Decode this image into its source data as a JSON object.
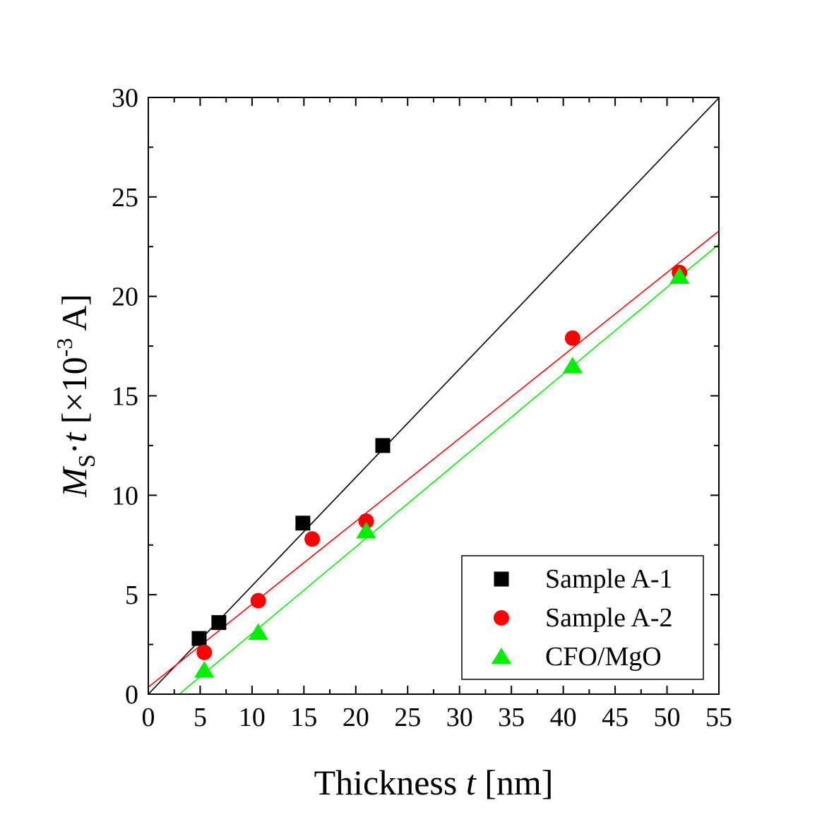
{
  "chart_data": {
    "type": "scatter",
    "xlabel": {
      "main": "Thickness ",
      "var": "t",
      "unit": " [nm]"
    },
    "ylabel": {
      "var": "M",
      "sub": "S",
      "dot": "·",
      "var2": "t",
      "bracket_open": " [×10",
      "exp": "-3",
      "unit": " A]"
    },
    "xlim": [
      0,
      55
    ],
    "ylim": [
      0,
      30
    ],
    "xticks": [
      0,
      5,
      10,
      15,
      20,
      25,
      30,
      35,
      40,
      45,
      50,
      55
    ],
    "yticks": [
      0,
      5,
      10,
      15,
      20,
      25,
      30
    ],
    "legend_position": "bottom-right",
    "series": [
      {
        "name": "Sample A-1",
        "marker": "square",
        "color": "#000000",
        "points": [
          [
            4.9,
            2.8
          ],
          [
            6.8,
            3.6
          ],
          [
            14.9,
            8.6
          ],
          [
            22.6,
            12.5
          ]
        ],
        "fit": {
          "slope": 0.545,
          "intercept": 0.0
        }
      },
      {
        "name": "Sample A-2",
        "marker": "circle",
        "color": "#ff0000",
        "points": [
          [
            5.4,
            2.1
          ],
          [
            10.6,
            4.7
          ],
          [
            15.8,
            7.8
          ],
          [
            21.0,
            8.7
          ],
          [
            40.9,
            17.9
          ],
          [
            51.2,
            21.2
          ]
        ],
        "fit": {
          "slope": 0.417,
          "intercept": 0.35
        }
      },
      {
        "name": "CFO/MgO",
        "marker": "triangle",
        "color": "#00ee00",
        "points": [
          [
            5.4,
            1.2
          ],
          [
            10.6,
            3.1
          ],
          [
            21.0,
            8.2
          ],
          [
            40.9,
            16.5
          ],
          [
            51.2,
            21.0
          ]
        ],
        "fit": {
          "slope": 0.435,
          "intercept": -1.3
        }
      }
    ]
  }
}
